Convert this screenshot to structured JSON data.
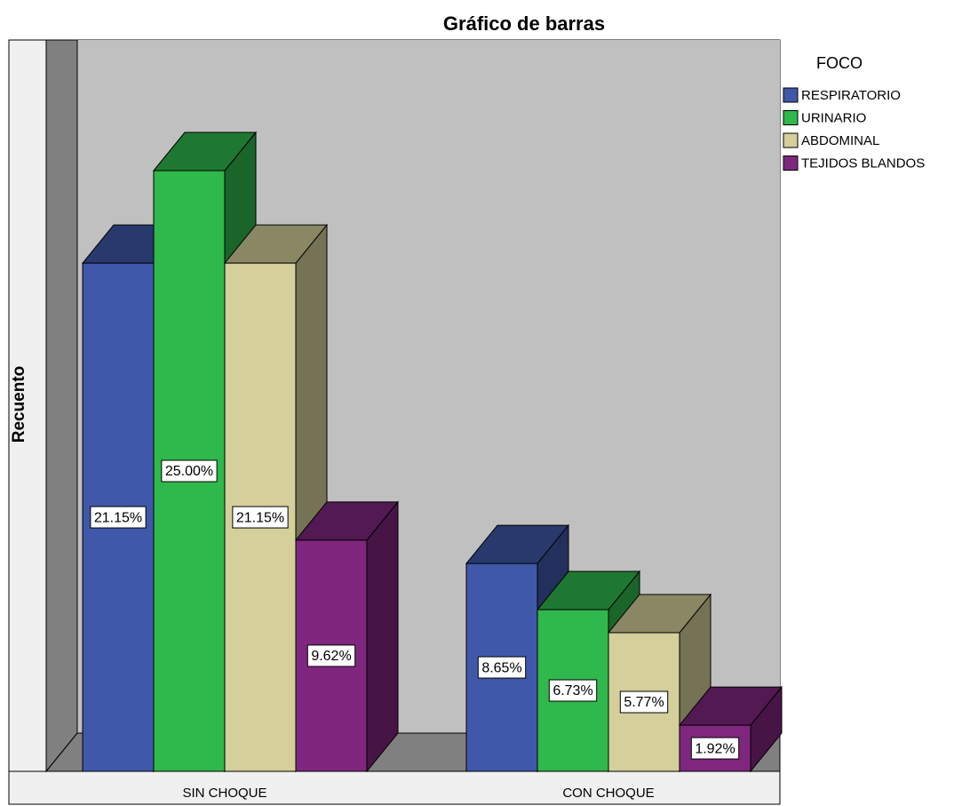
{
  "chart_data": {
    "type": "bar3d",
    "title": "Gráfico de barras",
    "y_label": "Recuento",
    "legend_title": "FOCO",
    "categories": [
      "SIN CHOQUE",
      "CON CHOQUE"
    ],
    "series": [
      {
        "name": "RESPIRATORIO",
        "color": "#3f58a9",
        "values": [
          21.15,
          8.65
        ],
        "value_labels": [
          "21.15%",
          "8.65%"
        ]
      },
      {
        "name": "URINARIO",
        "color": "#2fb84b",
        "values": [
          25.0,
          6.73
        ],
        "value_labels": [
          "25.00%",
          "6.73%"
        ]
      },
      {
        "name": "ABDOMINAL",
        "color": "#d4cf9b",
        "values": [
          21.15,
          5.77
        ],
        "value_labels": [
          "21.15%",
          "5.77%"
        ]
      },
      {
        "name": "TEJIDOS BLANDOS",
        "color": "#7f277f",
        "values": [
          9.62,
          1.92
        ],
        "value_labels": [
          "9.62%",
          "1.92%"
        ]
      }
    ]
  }
}
